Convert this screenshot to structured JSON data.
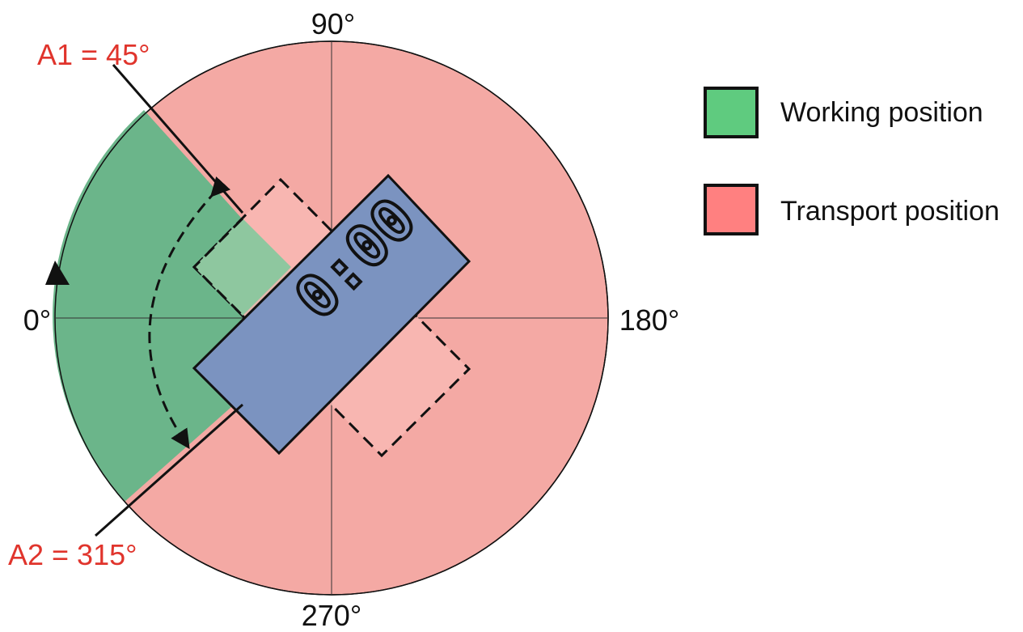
{
  "diagram": {
    "angle_labels": {
      "top": "90°",
      "left": "0°",
      "right": "180°",
      "bottom": "270°"
    },
    "limits": {
      "a1": "A1 = 45°",
      "a2": "A2 = 315°"
    },
    "display_readout": "0:00",
    "colors": {
      "working": "#6bb58a",
      "transport": "#f4a9a4",
      "display": "#7b93c0",
      "limit_text": "#e0342c",
      "outline": "#111111"
    }
  },
  "legend": {
    "items": [
      {
        "label": "Working position",
        "swatch_color": "#5fcb7f"
      },
      {
        "label": "Transport position",
        "swatch_color": "#ff8080"
      }
    ]
  }
}
